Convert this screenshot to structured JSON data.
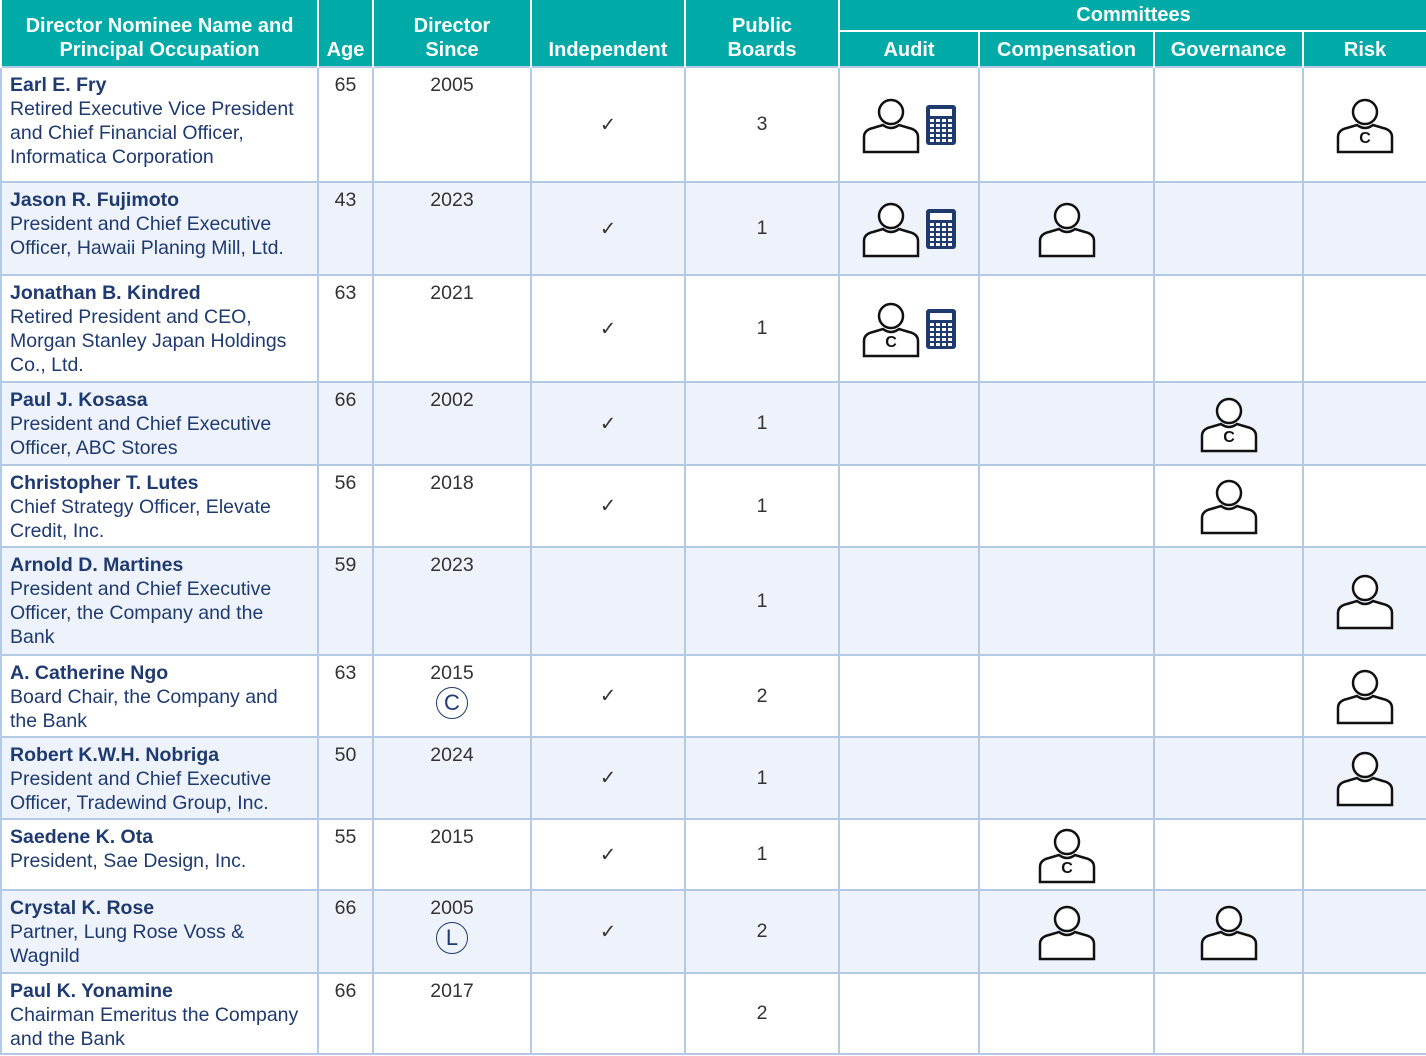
{
  "table": {
    "header": {
      "name": "Director Nominee Name and Principal Occupation",
      "age": "Age",
      "since": "Director Since",
      "independent": "Independent",
      "boards": "Public Boards",
      "committees": "Committees",
      "committee_names": [
        "Audit",
        "Compensation",
        "Governance",
        "Risk"
      ]
    },
    "rows": [
      {
        "name": "Earl E. Fry",
        "occupation": "Retired Executive Vice President and Chief Financial Officer, Informatica Corporation",
        "age": 65,
        "since": 2005,
        "independent": "✓",
        "boards": 3,
        "chair_letter": "C"
      },
      {
        "name": "Jason R. Fujimoto",
        "occupation": "President and Chief Executive Officer, Hawaii Planing Mill, Ltd.",
        "age": 43,
        "since": 2023,
        "independent": "✓",
        "boards": 1
      },
      {
        "name": "Jonathan B. Kindred",
        "occupation": "Retired President and CEO, Morgan Stanley Japan Holdings Co., Ltd.",
        "age": 63,
        "since": 2021,
        "independent": "✓",
        "boards": 1,
        "chair_letter": "C"
      },
      {
        "name": "Paul J. Kosasa",
        "occupation": "President and Chief Executive Officer, ABC Stores",
        "age": 66,
        "since": 2002,
        "independent": "✓",
        "boards": 1,
        "chair_letter": "C"
      },
      {
        "name": "Christopher T. Lutes",
        "occupation": "Chief Strategy Officer, Elevate Credit, Inc.",
        "age": 56,
        "since": 2018,
        "independent": "✓",
        "boards": 1
      },
      {
        "name": "Arnold D. Martines",
        "occupation": "President and Chief Executive Officer, the Company and the Bank",
        "age": 59,
        "since": 2023,
        "boards": 1
      },
      {
        "name": "A. Catherine Ngo",
        "occupation": "Board Chair, the Company and the Bank",
        "age": 63,
        "since": 2015,
        "since_note": "C",
        "independent": "✓",
        "boards": 2
      },
      {
        "name": "Robert K.W.H. Nobriga",
        "occupation": "President and Chief Executive Officer, Tradewind Group, Inc.",
        "age": 50,
        "since": 2024,
        "independent": "✓",
        "boards": 1
      },
      {
        "name": "Saedene K. Ota",
        "occupation": "President, Sae Design, Inc.",
        "age": 55,
        "since": 2015,
        "independent": "✓",
        "boards": 1,
        "chair_letter": "C"
      },
      {
        "name": "Crystal K. Rose",
        "occupation": "Partner, Lung Rose Voss & Wagnild",
        "age": 66,
        "since": 2005,
        "since_note": "L",
        "independent": "✓",
        "boards": 2
      },
      {
        "name": "Paul K. Yonamine",
        "occupation": "Chairman Emeritus the Company and the Bank",
        "age": 66,
        "since": 2017,
        "boards": 2
      }
    ]
  }
}
